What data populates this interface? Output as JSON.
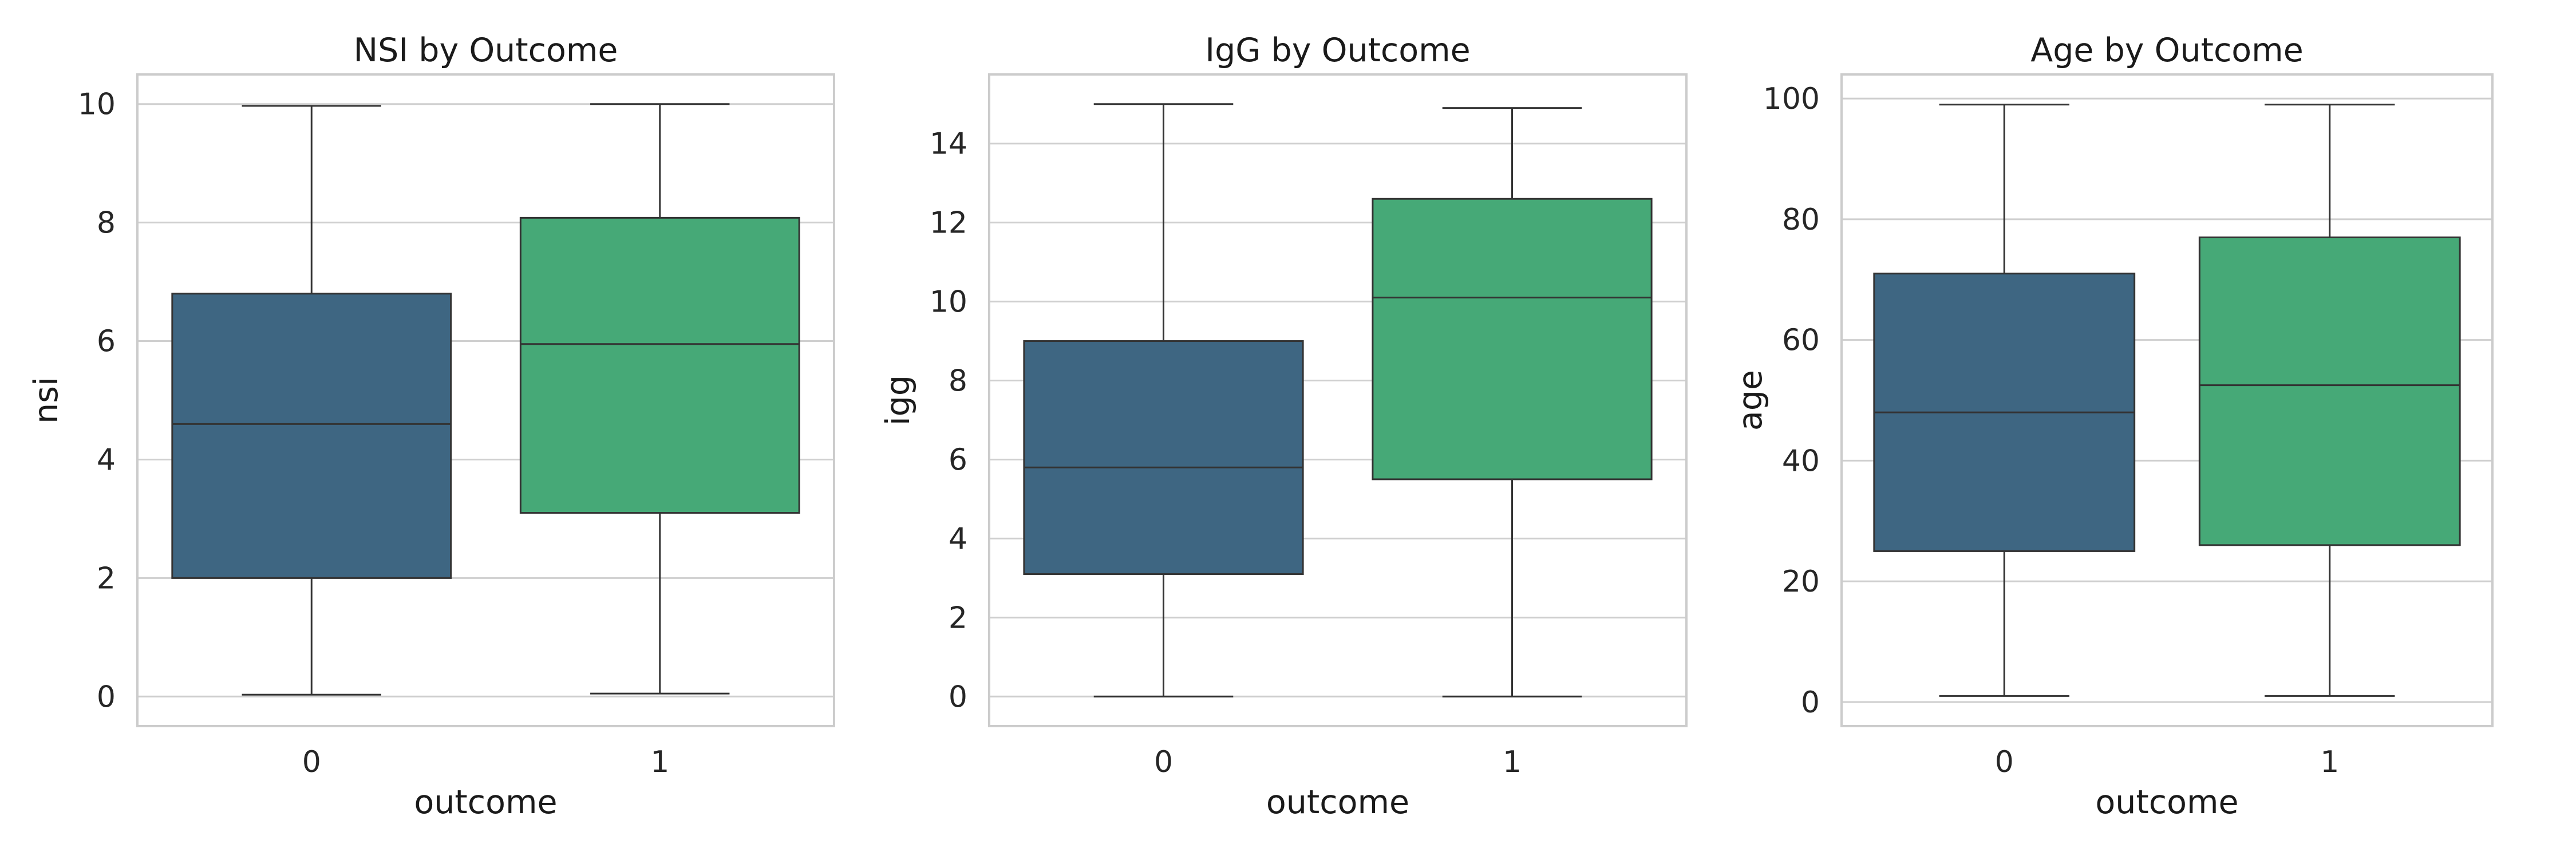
{
  "chart_data": [
    {
      "type": "box",
      "title": "NSI by Outcome",
      "xlabel": "outcome",
      "ylabel": "nsi",
      "categories": [
        "0",
        "1"
      ],
      "ylim": [
        -0.5,
        10.5
      ],
      "yticks": [
        0,
        2,
        4,
        6,
        8,
        10
      ],
      "grid": true,
      "boxes": [
        {
          "category": "0",
          "min": 0.03,
          "q1": 2.0,
          "median": 4.6,
          "q3": 6.8,
          "max": 9.97,
          "color": "#3e6682"
        },
        {
          "category": "1",
          "min": 0.05,
          "q1": 3.1,
          "median": 5.95,
          "q3": 8.08,
          "max": 10.0,
          "color": "#46a977"
        }
      ]
    },
    {
      "type": "box",
      "title": "IgG by Outcome",
      "xlabel": "outcome",
      "ylabel": "igg",
      "categories": [
        "0",
        "1"
      ],
      "ylim": [
        -0.75,
        15.75
      ],
      "yticks": [
        0,
        2,
        4,
        6,
        8,
        10,
        12,
        14
      ],
      "grid": true,
      "boxes": [
        {
          "category": "0",
          "min": 0.0,
          "q1": 3.1,
          "median": 5.8,
          "q3": 9.0,
          "max": 15.0,
          "color": "#3e6682"
        },
        {
          "category": "1",
          "min": 0.0,
          "q1": 5.5,
          "median": 10.1,
          "q3": 12.6,
          "max": 14.9,
          "color": "#46a977"
        }
      ]
    },
    {
      "type": "box",
      "title": "Age by Outcome",
      "xlabel": "outcome",
      "ylabel": "age",
      "categories": [
        "0",
        "1"
      ],
      "ylim": [
        -4,
        104
      ],
      "yticks": [
        0,
        20,
        40,
        60,
        80,
        100
      ],
      "grid": true,
      "boxes": [
        {
          "category": "0",
          "min": 1,
          "q1": 25,
          "median": 48,
          "q3": 71,
          "max": 99,
          "color": "#3e6682"
        },
        {
          "category": "1",
          "min": 1,
          "q1": 26,
          "median": 52.5,
          "q3": 77,
          "max": 99,
          "color": "#46a977"
        }
      ]
    }
  ]
}
